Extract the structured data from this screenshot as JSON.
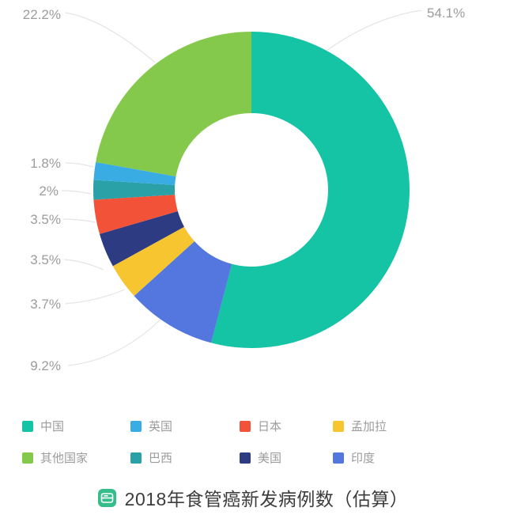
{
  "chart_data": {
    "type": "pie",
    "donut": true,
    "title": "2018年食管癌新发病例数（估算）",
    "legend_position": "bottom",
    "grid": false,
    "slices": [
      {
        "label": "中国",
        "value": 54.1,
        "display": "54.1%",
        "color": "#15C3A5"
      },
      {
        "label": "印度",
        "value": 9.2,
        "display": "9.2%",
        "color": "#5377DE"
      },
      {
        "label": "孟加拉",
        "value": 3.7,
        "display": "3.7%",
        "color": "#F7C52F"
      },
      {
        "label": "美国",
        "value": 3.5,
        "display": "3.5%",
        "color": "#2C3B82"
      },
      {
        "label": "日本",
        "value": 3.5,
        "display": "3.5%",
        "color": "#F25238"
      },
      {
        "label": "巴西",
        "value": 2,
        "display": "2%",
        "color": "#2AA1A7"
      },
      {
        "label": "英国",
        "value": 1.8,
        "display": "1.8%",
        "color": "#39ACE3"
      },
      {
        "label": "其他国家",
        "value": 22.2,
        "display": "22.2%",
        "color": "#84C94B"
      }
    ],
    "legend_order": [
      "中国",
      "英国",
      "日本",
      "孟加拉",
      "其他国家",
      "巴西",
      "美国",
      "印度"
    ]
  },
  "title": {
    "text": "2018年食管癌新发病例数（估算）",
    "icon": "book-badge-icon",
    "icon_color": "#35BE8B"
  },
  "style_colors": {
    "label_text": "#9c9c9c",
    "leader_line": "#e4e4e4",
    "title_text": "#3c3c3c"
  }
}
